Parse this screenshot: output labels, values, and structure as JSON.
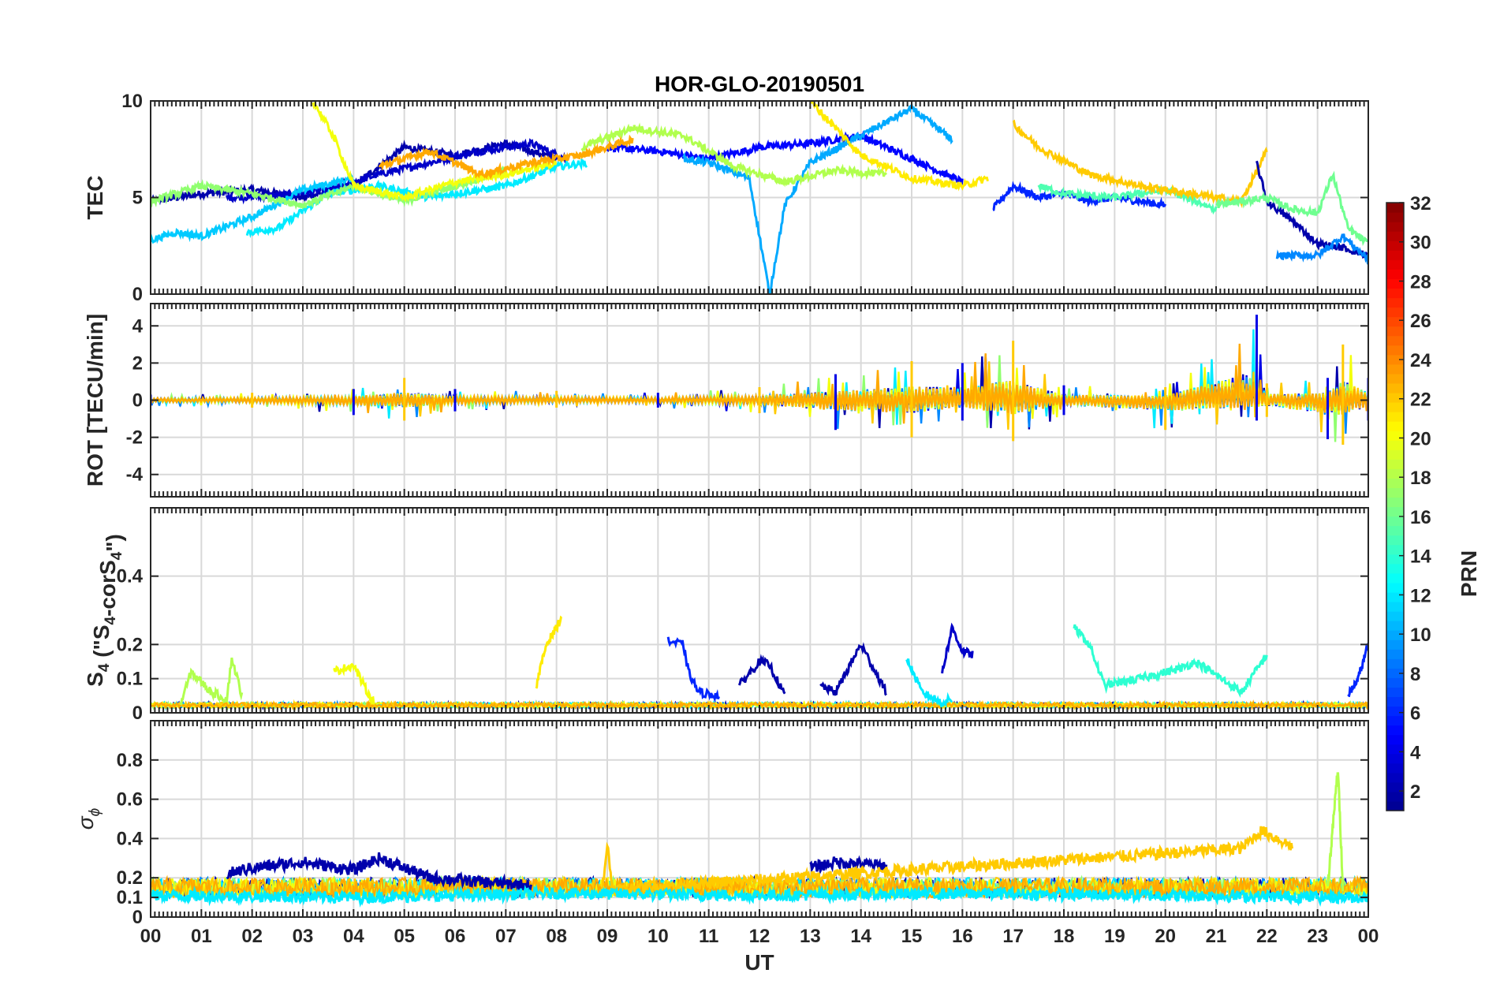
{
  "title": "HOR-GLO-20190501",
  "xlabel": "UT",
  "x_tick_labels": [
    "00",
    "01",
    "02",
    "03",
    "04",
    "05",
    "06",
    "07",
    "08",
    "09",
    "10",
    "11",
    "12",
    "13",
    "14",
    "15",
    "16",
    "17",
    "18",
    "19",
    "20",
    "21",
    "22",
    "23",
    "00"
  ],
  "colors": {
    "grid": "#d9d9d9",
    "axis": "#262626",
    "colormap": [
      "#00008f",
      "#0000ff",
      "#0080ff",
      "#00ffff",
      "#80ff80",
      "#ffff00",
      "#ff8000",
      "#ff0000",
      "#800000"
    ]
  },
  "colorbar": {
    "label": "PRN",
    "range": [
      1,
      32
    ],
    "tick_values": [
      2,
      4,
      6,
      8,
      10,
      12,
      14,
      16,
      18,
      20,
      22,
      24,
      26,
      28,
      30,
      32
    ],
    "tick_labels": [
      "2",
      "4",
      "6",
      "8",
      "10",
      "12",
      "14",
      "16",
      "18",
      "20",
      "22",
      "24",
      "26",
      "28",
      "30",
      "32"
    ]
  },
  "panels": [
    {
      "id": "tec",
      "ylabel": "TEC",
      "yrange": [
        0,
        10
      ],
      "ticks": [
        0,
        5,
        10
      ],
      "tick_labels": [
        "0",
        "5",
        "10"
      ]
    },
    {
      "id": "rot",
      "ylabel": "ROT [TECU/min]",
      "yrange": [
        -5.2,
        5.2
      ],
      "ticks": [
        -4,
        -2,
        0,
        2,
        4
      ],
      "tick_labels": [
        "-4",
        "-2",
        "0",
        "2",
        "4"
      ]
    },
    {
      "id": "s4",
      "ylabel_main": "S",
      "ylabel_sub1": "4",
      "ylabel_mid": " (\"S",
      "ylabel_sub2": "4",
      "ylabel_mid2": "-corS",
      "ylabel_sub3": "4",
      "ylabel_end": "\")",
      "yrange": [
        0,
        0.6
      ],
      "ticks": [
        0,
        0.1,
        0.2,
        0.4
      ],
      "tick_labels": [
        "0",
        "0.1",
        "0.2",
        "0.4"
      ]
    },
    {
      "id": "sigma",
      "ylabel_greek": "σ",
      "ylabel_sub": "ϕ",
      "yrange": [
        0,
        1.0
      ],
      "ticks": [
        0,
        0.1,
        0.2,
        0.4,
        0.6,
        0.8
      ],
      "tick_labels": [
        "0",
        "0.1",
        "0.2",
        "0.4",
        "0.6",
        "0.8"
      ]
    }
  ],
  "chart_data": [
    {
      "type": "line",
      "title": "HOR-GLO-20190501",
      "ylabel": "TEC",
      "xlabel": "UT (hours)",
      "xlim": [
        0,
        24
      ],
      "ylim": [
        0,
        10
      ],
      "series": [
        {
          "prn": 2,
          "x": [
            0,
            1,
            2,
            3,
            4,
            5,
            6,
            7,
            8
          ],
          "y": [
            4.8,
            5.2,
            5.4,
            5.0,
            5.6,
            7.6,
            7.2,
            7.8,
            7.0
          ]
        },
        {
          "prn": 3,
          "x": [
            1.5,
            2.5,
            3.5,
            4.5,
            5.5,
            6.5,
            7.5,
            8.2
          ],
          "y": [
            5.0,
            5.1,
            5.4,
            6.2,
            6.8,
            7.4,
            7.8,
            7.0
          ]
        },
        {
          "prn": 5,
          "x": [
            9,
            10,
            11,
            12,
            13,
            14,
            15,
            16
          ],
          "y": [
            7.6,
            7.4,
            7.0,
            7.6,
            7.8,
            8.2,
            7.0,
            5.8
          ]
        },
        {
          "prn": 6,
          "x": [
            16.6,
            17,
            17.5,
            18,
            18.5,
            19,
            20
          ],
          "y": [
            4.4,
            5.6,
            5.0,
            5.2,
            4.8,
            5.0,
            4.6
          ]
        },
        {
          "prn": 11,
          "x": [
            0,
            0.5,
            1,
            2,
            3,
            4
          ],
          "y": [
            2.8,
            3.2,
            3.0,
            4.0,
            5.4,
            6.0
          ]
        },
        {
          "prn": 12,
          "x": [
            1.9,
            2.5,
            3.5,
            4.5,
            5.5,
            7,
            8,
            8.6
          ],
          "y": [
            3.2,
            3.4,
            5.2,
            5.6,
            5.0,
            5.6,
            6.6,
            6.8
          ]
        },
        {
          "prn": 10,
          "x": [
            10.5,
            11,
            11.8,
            12.2,
            12.5,
            13,
            14,
            15,
            15.8
          ],
          "y": [
            7.0,
            6.8,
            6.0,
            0.0,
            4.6,
            6.8,
            8.2,
            9.6,
            8.0
          ]
        },
        {
          "prn": 15,
          "x": [
            17.5,
            18,
            19,
            20,
            21
          ],
          "y": [
            5.6,
            5.2,
            5.0,
            5.4,
            4.4
          ]
        },
        {
          "prn": 17,
          "x": [
            0,
            1,
            2,
            3,
            4,
            5,
            6,
            7
          ],
          "y": [
            4.8,
            5.6,
            5.2,
            4.6,
            5.6,
            4.8,
            5.6,
            6.4
          ]
        },
        {
          "prn": 18,
          "x": [
            8.5,
            9.5,
            10.5,
            11.5,
            12.5,
            13.5,
            14.5
          ],
          "y": [
            7.6,
            8.6,
            8.2,
            6.6,
            5.8,
            6.4,
            6.2
          ]
        },
        {
          "prn": 20,
          "x": [
            3.2,
            3.6,
            4,
            5,
            6,
            7,
            8
          ],
          "y": [
            10.0,
            8.2,
            5.6,
            5.0,
            5.8,
            6.2,
            6.8
          ]
        },
        {
          "prn": 21,
          "x": [
            13,
            14,
            14.5,
            15,
            16,
            16.5
          ],
          "y": [
            10.0,
            7.2,
            6.6,
            6.0,
            5.6,
            6.0
          ]
        },
        {
          "prn": 23,
          "x": [
            4.5,
            5.5,
            6.5,
            7.5,
            8.5,
            9.5
          ],
          "y": [
            6.6,
            7.4,
            6.2,
            6.8,
            7.2,
            8.0
          ]
        },
        {
          "prn": 22,
          "x": [
            17,
            17.5,
            18.5,
            19.5,
            20.5,
            21.5,
            22
          ],
          "y": [
            8.8,
            7.6,
            6.2,
            5.6,
            5.2,
            4.8,
            7.4
          ]
        },
        {
          "prn": 2,
          "x": [
            21.8,
            22,
            22.5,
            23,
            23.5,
            24
          ],
          "y": [
            6.8,
            4.8,
            3.8,
            2.6,
            2.4,
            2.0
          ]
        },
        {
          "prn": 16,
          "x": [
            21,
            22,
            22.5,
            23,
            23.3,
            23.6,
            24
          ],
          "y": [
            4.6,
            5.0,
            4.4,
            4.2,
            6.2,
            3.4,
            2.6
          ]
        },
        {
          "prn": 9,
          "x": [
            22.2,
            23,
            23.5,
            24
          ],
          "y": [
            2.0,
            2.0,
            3.0,
            1.8
          ]
        }
      ]
    },
    {
      "type": "line",
      "ylabel": "ROT [TECU/min]",
      "xlim": [
        0,
        24
      ],
      "ylim": [
        -5.2,
        5.2
      ],
      "series": [
        {
          "name": "envelope_max",
          "x": [
            0,
            2,
            4,
            5,
            6,
            8,
            10,
            12,
            13.5,
            15,
            16,
            17,
            18,
            20,
            21.8,
            22,
            23.2,
            23.5,
            24
          ],
          "y": [
            0.3,
            0.4,
            0.6,
            1.2,
            0.6,
            0.5,
            0.4,
            0.7,
            1.4,
            2.1,
            2.0,
            3.2,
            0.8,
            0.7,
            4.6,
            0.9,
            1.2,
            3.0,
            1.2
          ]
        },
        {
          "name": "envelope_min",
          "x": [
            0,
            2,
            4,
            5,
            6,
            8,
            10,
            12,
            13.5,
            15,
            16,
            17,
            18,
            20,
            21.8,
            22,
            23.2,
            23.5,
            24
          ],
          "y": [
            -0.3,
            -0.4,
            -0.8,
            -1.1,
            -0.6,
            -0.4,
            -0.4,
            -0.7,
            -1.6,
            -2.0,
            -1.1,
            -2.2,
            -0.8,
            -1.6,
            -1.1,
            -0.9,
            -2.1,
            -2.4,
            -1.1
          ]
        }
      ]
    },
    {
      "type": "line",
      "ylabel": "S4 (\"S4-corS4\")",
      "xlim": [
        0,
        24
      ],
      "ylim": [
        0,
        0.6
      ],
      "series": [
        {
          "prn": 18,
          "x": [
            0.6,
            0.8,
            1.2,
            1.5,
            1.6,
            1.8
          ],
          "y": [
            0.03,
            0.12,
            0.06,
            0.04,
            0.16,
            0.05
          ]
        },
        {
          "prn": 20,
          "x": [
            3.6,
            4.0,
            4.2,
            4.4
          ],
          "y": [
            0.12,
            0.14,
            0.08,
            0.03
          ]
        },
        {
          "prn": 21,
          "x": [
            7.6,
            7.8,
            8.0,
            8.1
          ],
          "y": [
            0.08,
            0.2,
            0.25,
            0.28
          ]
        },
        {
          "prn": 6,
          "x": [
            10.2,
            10.5,
            10.6,
            10.8,
            11.2
          ],
          "y": [
            0.21,
            0.2,
            0.12,
            0.06,
            0.05
          ]
        },
        {
          "prn": 2,
          "x": [
            11.6,
            12,
            12.2,
            12.5
          ],
          "y": [
            0.08,
            0.15,
            0.14,
            0.05
          ]
        },
        {
          "prn": 2,
          "x": [
            13.2,
            13.5,
            14,
            14.5
          ],
          "y": [
            0.08,
            0.06,
            0.2,
            0.06
          ]
        },
        {
          "prn": 12,
          "x": [
            14.9,
            15.2,
            15.6,
            15.8
          ],
          "y": [
            0.16,
            0.06,
            0.03,
            0.04
          ]
        },
        {
          "prn": 3,
          "x": [
            15.6,
            15.8,
            16,
            16.2
          ],
          "y": [
            0.12,
            0.25,
            0.18,
            0.17
          ]
        },
        {
          "prn": 14,
          "x": [
            18.2,
            18.5,
            18.8,
            19.5,
            20.3,
            20.6,
            21.5,
            22
          ],
          "y": [
            0.25,
            0.2,
            0.08,
            0.1,
            0.13,
            0.15,
            0.06,
            0.17
          ]
        },
        {
          "prn": 6,
          "x": [
            23.6,
            23.8,
            24
          ],
          "y": [
            0.05,
            0.1,
            0.2
          ]
        }
      ]
    },
    {
      "type": "line",
      "ylabel": "σϕ",
      "xlim": [
        0,
        24
      ],
      "ylim": [
        0,
        1.0
      ],
      "series": [
        {
          "prn": 2,
          "x": [
            1.5,
            2,
            3,
            4,
            4.5,
            5.5,
            6.5,
            7.5
          ],
          "y": [
            0.22,
            0.25,
            0.28,
            0.24,
            0.3,
            0.2,
            0.18,
            0.16
          ]
        },
        {
          "prn": 2,
          "x": [
            13,
            13.5,
            14,
            14.5
          ],
          "y": [
            0.25,
            0.28,
            0.27,
            0.26
          ]
        },
        {
          "prn": 18,
          "x": [
            23.2,
            23.4,
            23.5
          ],
          "y": [
            0.15,
            0.76,
            0.15
          ]
        },
        {
          "prn": 22,
          "x": [
            8.9,
            9.0,
            9.1,
            21.5,
            21.9,
            22.5
          ],
          "y": [
            0.14,
            0.37,
            0.14,
            0.35,
            0.44,
            0.36
          ]
        },
        {
          "prn": 12,
          "x": [
            0,
            4,
            8,
            12,
            16,
            20,
            24
          ],
          "y": [
            0.11,
            0.1,
            0.12,
            0.11,
            0.12,
            0.11,
            0.1
          ]
        }
      ]
    }
  ]
}
